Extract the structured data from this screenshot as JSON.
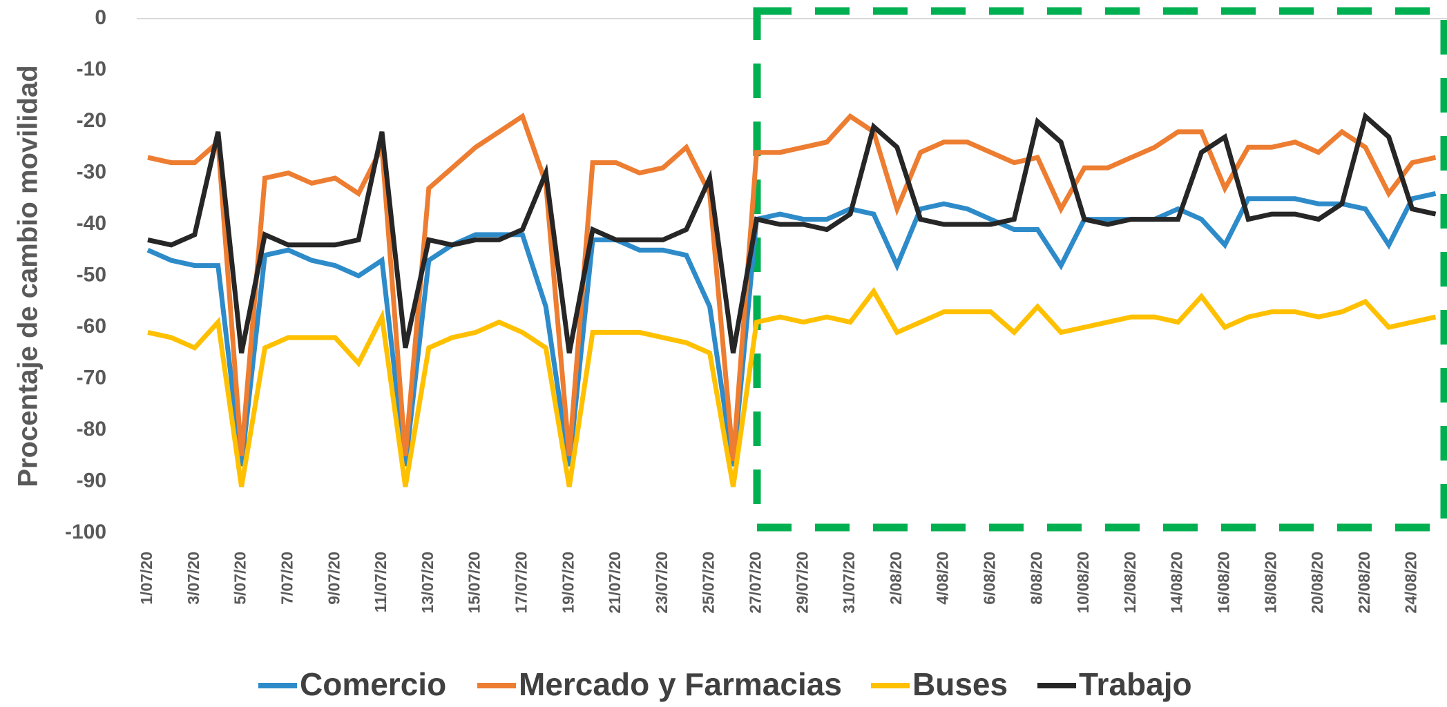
{
  "chart_data": {
    "type": "line",
    "y_label": "Procentaje de cambio movilidad",
    "categories": [
      "1/07/20",
      null,
      "3/07/20",
      null,
      "5/07/20",
      null,
      "7/07/20",
      null,
      "9/07/20",
      null,
      "11/07/20",
      null,
      "13/07/20",
      null,
      "15/07/20",
      null,
      "17/07/20",
      null,
      "19/07/20",
      null,
      "21/07/20",
      null,
      "23/07/20",
      null,
      "25/07/20",
      null,
      "27/07/20",
      null,
      "29/07/20",
      null,
      "31/07/20",
      null,
      "2/08/20",
      null,
      "4/08/20",
      null,
      "6/08/20",
      null,
      "8/08/20",
      null,
      "10/08/20",
      null,
      "12/08/20",
      null,
      "14/08/20",
      null,
      "16/08/20",
      null,
      "18/08/20",
      null,
      "20/08/20",
      null,
      "22/08/20",
      null,
      "24/08/20",
      null
    ],
    "series": [
      {
        "name": "Comercio",
        "color": "#2e8bc9",
        "values": [
          -45,
          -47,
          -48,
          -48,
          -87,
          -46,
          -45,
          -47,
          -48,
          -50,
          -47,
          -87,
          -47,
          -44,
          -42,
          -42,
          -42,
          -56,
          -87,
          -43,
          -43,
          -45,
          -45,
          -46,
          -56,
          -87,
          -39,
          -38,
          -39,
          -39,
          -37,
          -38,
          -48,
          -37,
          -36,
          -37,
          -39,
          -41,
          -41,
          -48,
          -39,
          -39,
          -39,
          -39,
          -37,
          -39,
          -44,
          -35,
          -35,
          -35,
          -36,
          -36,
          -37,
          -44,
          -35,
          -34
        ]
      },
      {
        "name": "Mercado y Farmacias",
        "color": "#ed7d31",
        "values": [
          -27,
          -28,
          -28,
          -24,
          -85,
          -31,
          -30,
          -32,
          -31,
          -34,
          -25,
          -85,
          -33,
          -29,
          -25,
          -22,
          -19,
          -32,
          -85,
          -28,
          -28,
          -30,
          -29,
          -25,
          -34,
          -86,
          -26,
          -26,
          -25,
          -24,
          -19,
          -22,
          -37,
          -26,
          -24,
          -24,
          -26,
          -28,
          -27,
          -37,
          -29,
          -29,
          -27,
          -25,
          -22,
          -22,
          -33,
          -25,
          -25,
          -24,
          -26,
          -22,
          -25,
          -34,
          -28,
          -27
        ]
      },
      {
        "name": "Buses",
        "color": "#ffc000",
        "values": [
          -61,
          -62,
          -64,
          -59,
          -91,
          -64,
          -62,
          -62,
          -62,
          -67,
          -58,
          -91,
          -64,
          -62,
          -61,
          -59,
          -61,
          -64,
          -91,
          -61,
          -61,
          -61,
          -62,
          -63,
          -65,
          -91,
          -59,
          -58,
          -59,
          -58,
          -59,
          -53,
          -61,
          -59,
          -57,
          -57,
          -57,
          -61,
          -56,
          -61,
          -60,
          -59,
          -58,
          -58,
          -59,
          -54,
          -60,
          -58,
          -57,
          -57,
          -58,
          -57,
          -55,
          -60,
          -59,
          -58
        ]
      },
      {
        "name": "Trabajo",
        "color": "#262626",
        "values": [
          -43,
          -44,
          -42,
          -22,
          -65,
          -42,
          -44,
          -44,
          -44,
          -43,
          -22,
          -64,
          -43,
          -44,
          -43,
          -43,
          -41,
          -30,
          -65,
          -41,
          -43,
          -43,
          -43,
          -41,
          -31,
          -65,
          -39,
          -40,
          -40,
          -41,
          -38,
          -21,
          -25,
          -39,
          -40,
          -40,
          -40,
          -39,
          -20,
          -24,
          -39,
          -40,
          -39,
          -39,
          -39,
          -26,
          -23,
          -39,
          -38,
          -38,
          -39,
          -36,
          -19,
          -23,
          -37,
          -38
        ]
      }
    ],
    "ylim": [
      -100,
      0
    ],
    "yticks": [
      0,
      -10,
      -20,
      -30,
      -40,
      -50,
      -60,
      -70,
      -80,
      -90,
      -100
    ],
    "grid": false
  }
}
